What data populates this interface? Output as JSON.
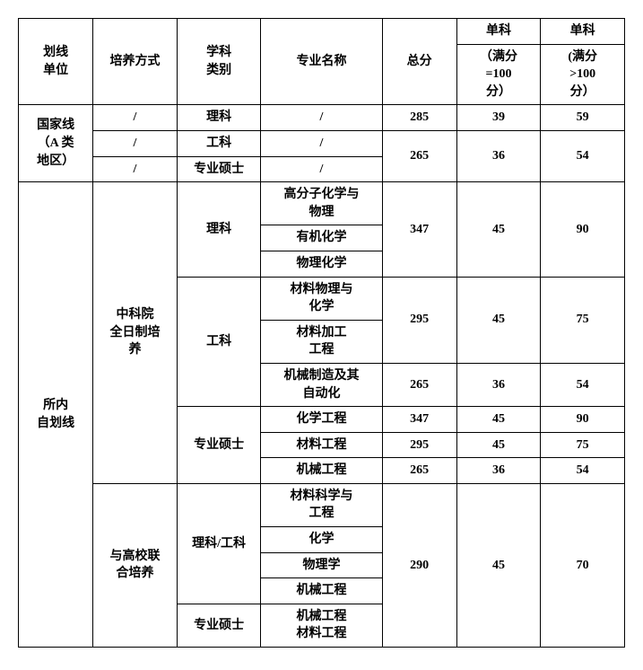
{
  "headers": {
    "unit": "划线\n单位",
    "mode": "培养方式",
    "category": "学科\n类别",
    "major": "专业名称",
    "total": "总分",
    "single_top": "单科",
    "single1": "（满分\n=100\n分）",
    "single2": "(满分\n>100\n分）"
  },
  "national": {
    "unit": "国家线\n（A 类\n地区）",
    "rows": [
      {
        "mode": "/",
        "cat": "理科",
        "major": "/",
        "total": "285",
        "s1": "39",
        "s2": "59"
      },
      {
        "mode": "/",
        "cat": "工科",
        "major": "/"
      },
      {
        "mode": "/",
        "cat": "专业硕士",
        "major": "/"
      }
    ],
    "merged": {
      "total": "265",
      "s1": "36",
      "s2": "54"
    }
  },
  "internal": {
    "unit": "所内\n自划线",
    "fulltime": {
      "mode": "中科院\n全日制培\n养",
      "science": {
        "cat": "理科",
        "majors": [
          "高分子化学与\n物理",
          "有机化学",
          "物理化学"
        ],
        "total": "347",
        "s1": "45",
        "s2": "90"
      },
      "eng": {
        "cat": "工科",
        "group1": {
          "majors": [
            "材料物理与\n化学",
            "材料加工\n工程"
          ],
          "total": "295",
          "s1": "45",
          "s2": "75"
        },
        "group2": {
          "major": "机械制造及其\n自动化",
          "total": "265",
          "s1": "36",
          "s2": "54"
        }
      },
      "prof": {
        "cat": "专业硕士",
        "rows": [
          {
            "major": "化学工程",
            "total": "347",
            "s1": "45",
            "s2": "90"
          },
          {
            "major": "材料工程",
            "total": "295",
            "s1": "45",
            "s2": "75"
          },
          {
            "major": "机械工程",
            "total": "265",
            "s1": "36",
            "s2": "54"
          }
        ]
      }
    },
    "joint": {
      "mode": "与高校联\n合培养",
      "sci_eng": {
        "cat": "理科/工科",
        "majors": [
          "材料科学与\n工程",
          "化学",
          "物理学",
          "机械工程"
        ]
      },
      "prof": {
        "cat": "专业硕士",
        "major": "机械工程\n材料工程"
      },
      "total": "290",
      "s1": "45",
      "s2": "70"
    }
  }
}
